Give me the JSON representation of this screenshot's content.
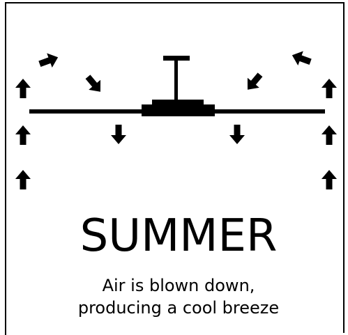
{
  "title": "SUMMER",
  "description": {
    "lines": [
      "Air is blown down,",
      "producing a cool breeze"
    ]
  }
}
